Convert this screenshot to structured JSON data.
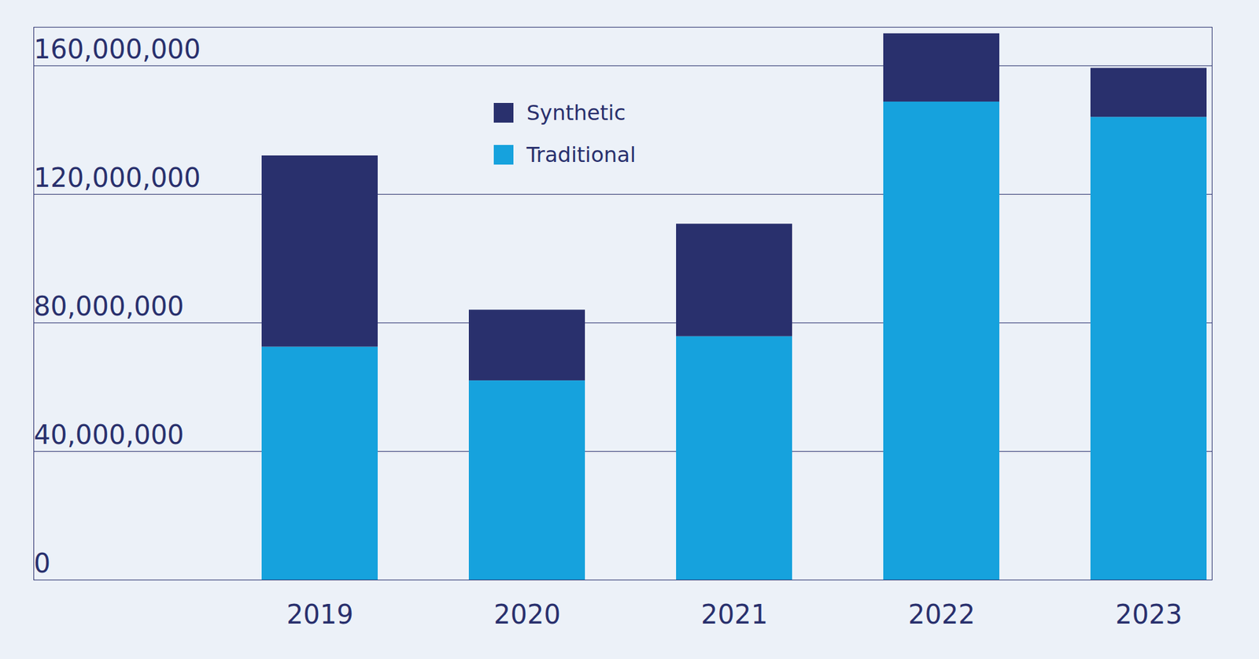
{
  "chart_data": {
    "type": "bar",
    "stacked": true,
    "legend": "top",
    "categories": [
      "2019",
      "2020",
      "2021",
      "2022",
      "2023"
    ],
    "series": [
      {
        "name": "Traditional",
        "color": "#16a2dd",
        "values": [
          72500000,
          62000000,
          75750000,
          148750000,
          144000000
        ]
      },
      {
        "name": "Synthetic",
        "color": "#29306d",
        "values": [
          59500000,
          22000000,
          35000000,
          21250000,
          15250000
        ]
      }
    ],
    "ylim": [
      0,
      172000000
    ],
    "yticks": [
      0,
      {
        "value": 40000000,
        "label": "40,000,000"
      },
      {
        "value": 80000000,
        "label": "80,000,000"
      },
      {
        "value": 120000000,
        "label": "120,000,000"
      },
      {
        "value": 160000000,
        "label": "160,000,000"
      }
    ],
    "grid": true
  }
}
